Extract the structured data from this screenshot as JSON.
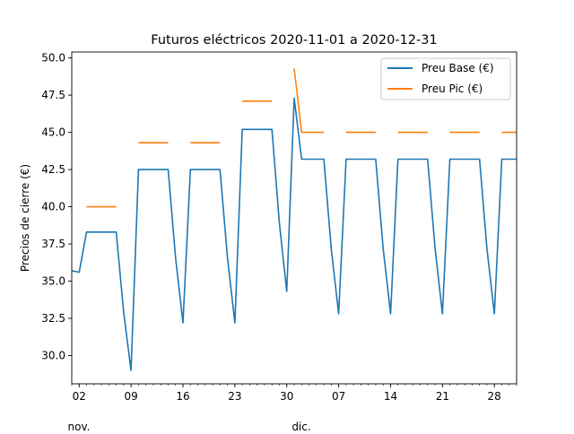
{
  "chart_data": {
    "type": "line",
    "title": "Futuros eléctricos 2020-11-01 a 2020-12-31",
    "xlabel": "",
    "ylabel": "Precios de cierre (€)",
    "xlim": [
      "2020-11-01",
      "2020-12-31"
    ],
    "ylim": [
      28.1,
      50.4
    ],
    "grid": false,
    "legend_position": "top-right",
    "y_ticks": [
      "30.0",
      "32.5",
      "35.0",
      "37.5",
      "40.0",
      "42.5",
      "45.0",
      "47.5",
      "50.0"
    ],
    "y_tick_values": [
      30.0,
      32.5,
      35.0,
      37.5,
      40.0,
      42.5,
      45.0,
      47.5,
      50.0
    ],
    "x_ticks": [
      {
        "date": "2020-11-02",
        "label": "02"
      },
      {
        "date": "2020-11-09",
        "label": "09"
      },
      {
        "date": "2020-11-16",
        "label": "16"
      },
      {
        "date": "2020-11-23",
        "label": "23"
      },
      {
        "date": "2020-11-30",
        "label": "30"
      },
      {
        "date": "2020-12-07",
        "label": "07"
      },
      {
        "date": "2020-12-14",
        "label": "14"
      },
      {
        "date": "2020-12-21",
        "label": "21"
      },
      {
        "date": "2020-12-28",
        "label": "28"
      }
    ],
    "month_labels": [
      {
        "date": "2020-11-01",
        "label": "nov."
      },
      {
        "date": "2020-12-01",
        "label": "dic."
      }
    ],
    "series": [
      {
        "name": "Preu Base (€)",
        "color": "#1f77b4",
        "points": [
          [
            "2020-11-01",
            35.7
          ],
          [
            "2020-11-02",
            35.6
          ],
          [
            "2020-11-03",
            38.3
          ],
          [
            "2020-11-04",
            38.3
          ],
          [
            "2020-11-05",
            38.3
          ],
          [
            "2020-11-06",
            38.3
          ],
          [
            "2020-11-07",
            38.3
          ],
          [
            "2020-11-08",
            32.9
          ],
          [
            "2020-11-09",
            29.0
          ],
          [
            "2020-11-10",
            42.5
          ],
          [
            "2020-11-11",
            42.5
          ],
          [
            "2020-11-12",
            42.5
          ],
          [
            "2020-11-13",
            42.5
          ],
          [
            "2020-11-14",
            42.5
          ],
          [
            "2020-11-15",
            36.6
          ],
          [
            "2020-11-16",
            32.2
          ],
          [
            "2020-11-17",
            42.5
          ],
          [
            "2020-11-18",
            42.5
          ],
          [
            "2020-11-19",
            42.5
          ],
          [
            "2020-11-20",
            42.5
          ],
          [
            "2020-11-21",
            42.5
          ],
          [
            "2020-11-22",
            36.6
          ],
          [
            "2020-11-23",
            32.2
          ],
          [
            "2020-11-24",
            45.2
          ],
          [
            "2020-11-25",
            45.2
          ],
          [
            "2020-11-26",
            45.2
          ],
          [
            "2020-11-27",
            45.2
          ],
          [
            "2020-11-28",
            45.2
          ],
          [
            "2020-11-29",
            38.9
          ],
          [
            "2020-11-30",
            34.3
          ],
          [
            "2020-12-01",
            47.3
          ],
          [
            "2020-12-02",
            43.2
          ],
          [
            "2020-12-03",
            43.2
          ],
          [
            "2020-12-04",
            43.2
          ],
          [
            "2020-12-05",
            43.2
          ],
          [
            "2020-12-06",
            37.2
          ],
          [
            "2020-12-07",
            32.8
          ],
          [
            "2020-12-08",
            43.2
          ],
          [
            "2020-12-09",
            43.2
          ],
          [
            "2020-12-10",
            43.2
          ],
          [
            "2020-12-11",
            43.2
          ],
          [
            "2020-12-12",
            43.2
          ],
          [
            "2020-12-13",
            37.2
          ],
          [
            "2020-12-14",
            32.8
          ],
          [
            "2020-12-15",
            43.2
          ],
          [
            "2020-12-16",
            43.2
          ],
          [
            "2020-12-17",
            43.2
          ],
          [
            "2020-12-18",
            43.2
          ],
          [
            "2020-12-19",
            43.2
          ],
          [
            "2020-12-20",
            37.2
          ],
          [
            "2020-12-21",
            32.8
          ],
          [
            "2020-12-22",
            43.2
          ],
          [
            "2020-12-23",
            43.2
          ],
          [
            "2020-12-24",
            43.2
          ],
          [
            "2020-12-25",
            43.2
          ],
          [
            "2020-12-26",
            43.2
          ],
          [
            "2020-12-27",
            37.2
          ],
          [
            "2020-12-28",
            32.8
          ],
          [
            "2020-12-29",
            43.2
          ],
          [
            "2020-12-30",
            43.2
          ],
          [
            "2020-12-31",
            43.2
          ]
        ]
      },
      {
        "name": "Preu Pic (€)",
        "color": "#ff7f0e",
        "segments": [
          [
            [
              "2020-11-03",
              40.0
            ],
            [
              "2020-11-07",
              40.0
            ]
          ],
          [
            [
              "2020-11-10",
              44.3
            ],
            [
              "2020-11-14",
              44.3
            ]
          ],
          [
            [
              "2020-11-17",
              44.3
            ],
            [
              "2020-11-21",
              44.3
            ]
          ],
          [
            [
              "2020-11-24",
              47.1
            ],
            [
              "2020-11-28",
              47.1
            ]
          ],
          [
            [
              "2020-12-01",
              49.3
            ],
            [
              "2020-12-02",
              45.0
            ],
            [
              "2020-12-05",
              45.0
            ]
          ],
          [
            [
              "2020-12-08",
              45.0
            ],
            [
              "2020-12-12",
              45.0
            ]
          ],
          [
            [
              "2020-12-15",
              45.0
            ],
            [
              "2020-12-19",
              45.0
            ]
          ],
          [
            [
              "2020-12-22",
              45.0
            ],
            [
              "2020-12-26",
              45.0
            ]
          ],
          [
            [
              "2020-12-29",
              45.0
            ],
            [
              "2020-12-31",
              45.0
            ]
          ]
        ]
      }
    ]
  }
}
